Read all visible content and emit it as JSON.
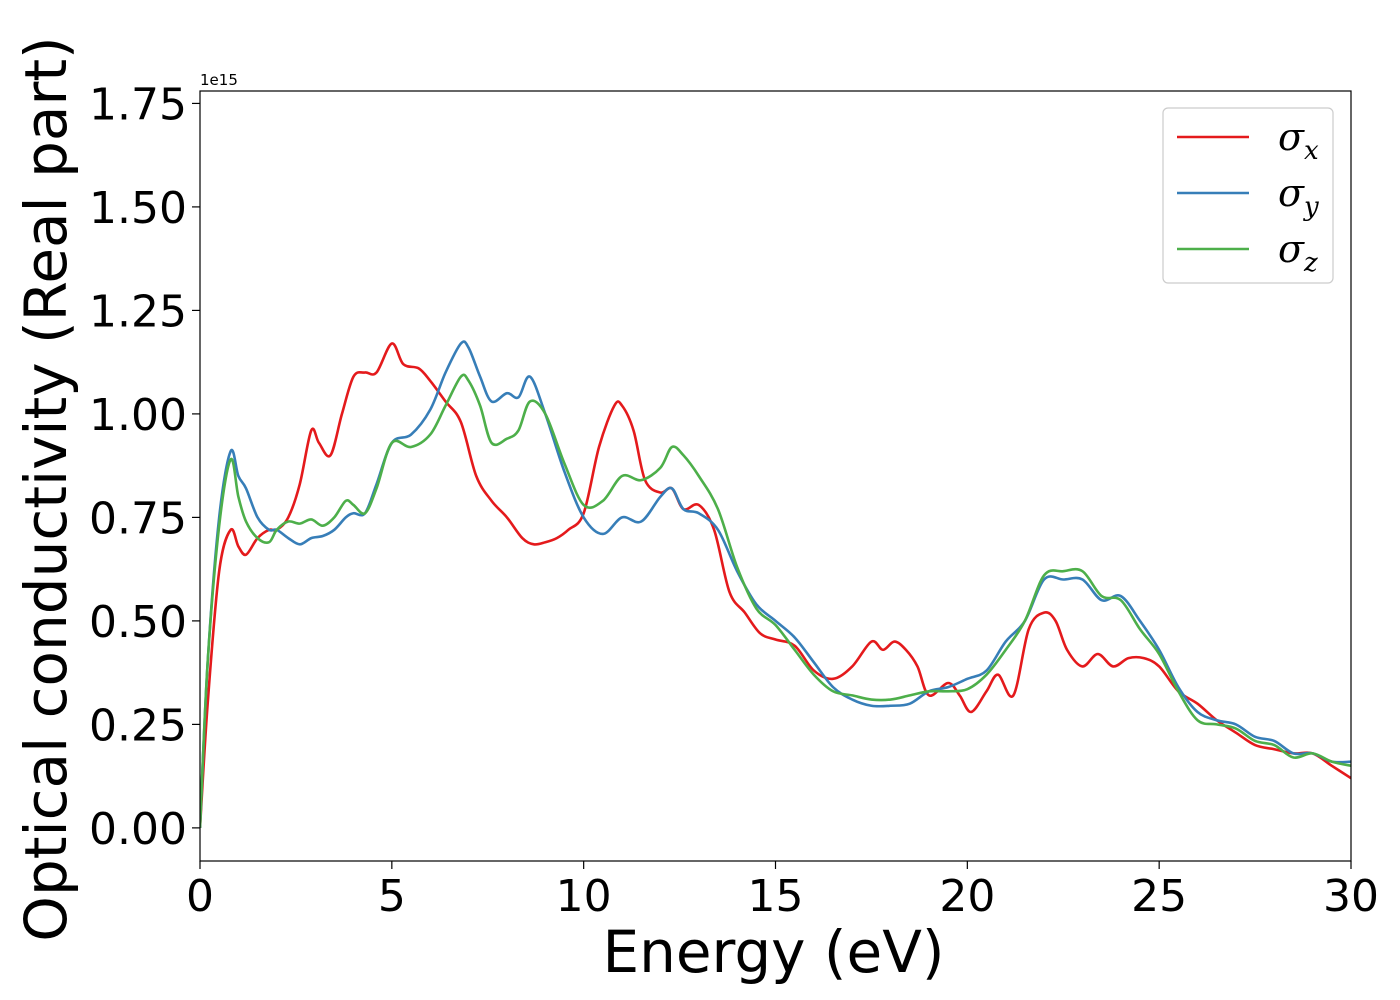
{
  "chart_data": {
    "type": "line",
    "title": "",
    "xlabel": "Energy (eV)",
    "ylabel": "Optical conductivity (Real part)",
    "y_offset_text": "1e15",
    "xlim": [
      0,
      30
    ],
    "ylim": [
      -0.08,
      1.78
    ],
    "xticks": [
      0,
      5,
      10,
      15,
      20,
      25,
      30
    ],
    "xtick_labels": [
      "0",
      "5",
      "10",
      "15",
      "20",
      "25",
      "30"
    ],
    "yticks": [
      0.0,
      0.25,
      0.5,
      0.75,
      1.0,
      1.25,
      1.5,
      1.75
    ],
    "ytick_labels": [
      "0.00",
      "0.25",
      "0.50",
      "0.75",
      "1.00",
      "1.25",
      "1.50",
      "1.75"
    ],
    "grid": false,
    "legend_position": "top-right",
    "series": [
      {
        "name": "σx",
        "base": "σ",
        "sub": "x",
        "color": "#e41a1c",
        "x": [
          0,
          0.2,
          0.5,
          0.8,
          1.0,
          1.2,
          1.5,
          1.8,
          2.0,
          2.3,
          2.6,
          2.9,
          3.1,
          3.4,
          3.7,
          4.0,
          4.3,
          4.6,
          5.0,
          5.3,
          5.7,
          6.0,
          6.4,
          6.8,
          7.2,
          7.6,
          8.0,
          8.4,
          8.7,
          9.0,
          9.3,
          9.6,
          10.0,
          10.4,
          10.8,
          11.0,
          11.3,
          11.6,
          12.0,
          12.3,
          12.6,
          13.0,
          13.4,
          13.8,
          14.2,
          14.6,
          15.0,
          15.5,
          16.0,
          16.5,
          17.0,
          17.5,
          17.8,
          18.1,
          18.4,
          18.7,
          19.0,
          19.5,
          19.8,
          20.1,
          20.5,
          20.8,
          21.2,
          21.6,
          22.0,
          22.3,
          22.6,
          23.0,
          23.4,
          23.8,
          24.2,
          24.6,
          25.0,
          25.5,
          26.0,
          26.5,
          27.0,
          27.5,
          28.0,
          28.5,
          29.0,
          29.5,
          30.0
        ],
        "y": [
          0.0,
          0.3,
          0.62,
          0.72,
          0.68,
          0.66,
          0.7,
          0.72,
          0.72,
          0.75,
          0.83,
          0.96,
          0.93,
          0.9,
          1.0,
          1.09,
          1.1,
          1.1,
          1.17,
          1.12,
          1.11,
          1.08,
          1.03,
          0.98,
          0.85,
          0.79,
          0.75,
          0.7,
          0.685,
          0.69,
          0.7,
          0.72,
          0.76,
          0.92,
          1.02,
          1.02,
          0.96,
          0.84,
          0.81,
          0.82,
          0.77,
          0.78,
          0.72,
          0.57,
          0.52,
          0.47,
          0.455,
          0.44,
          0.38,
          0.36,
          0.39,
          0.45,
          0.43,
          0.45,
          0.43,
          0.39,
          0.32,
          0.35,
          0.32,
          0.28,
          0.33,
          0.37,
          0.32,
          0.48,
          0.52,
          0.5,
          0.43,
          0.39,
          0.42,
          0.39,
          0.41,
          0.41,
          0.39,
          0.33,
          0.3,
          0.26,
          0.23,
          0.2,
          0.19,
          0.18,
          0.18,
          0.15,
          0.12
        ]
      },
      {
        "name": "σy",
        "base": "σ",
        "sub": "y",
        "color": "#377eb8",
        "x": [
          0,
          0.2,
          0.5,
          0.8,
          1.0,
          1.2,
          1.5,
          1.8,
          2.0,
          2.3,
          2.6,
          2.9,
          3.2,
          3.5,
          3.8,
          4.0,
          4.3,
          4.6,
          5.0,
          5.5,
          6.0,
          6.4,
          6.8,
          7.0,
          7.3,
          7.6,
          8.0,
          8.3,
          8.6,
          9.0,
          9.5,
          10.0,
          10.5,
          11.0,
          11.5,
          12.0,
          12.3,
          12.6,
          13.0,
          13.5,
          14.0,
          14.5,
          15.0,
          15.5,
          16.0,
          16.5,
          17.0,
          17.5,
          18.0,
          18.5,
          19.0,
          19.5,
          20.0,
          20.5,
          21.0,
          21.5,
          22.0,
          22.5,
          23.0,
          23.5,
          24.0,
          24.5,
          25.0,
          25.5,
          26.0,
          26.5,
          27.0,
          27.5,
          28.0,
          28.5,
          29.0,
          29.5,
          30.0
        ],
        "y": [
          0.0,
          0.4,
          0.75,
          0.91,
          0.85,
          0.82,
          0.75,
          0.72,
          0.72,
          0.7,
          0.685,
          0.7,
          0.705,
          0.72,
          0.75,
          0.76,
          0.76,
          0.83,
          0.93,
          0.95,
          1.01,
          1.1,
          1.17,
          1.16,
          1.09,
          1.03,
          1.05,
          1.04,
          1.09,
          1.0,
          0.86,
          0.75,
          0.71,
          0.75,
          0.74,
          0.8,
          0.82,
          0.77,
          0.76,
          0.72,
          0.62,
          0.54,
          0.5,
          0.46,
          0.4,
          0.34,
          0.31,
          0.295,
          0.295,
          0.3,
          0.33,
          0.34,
          0.36,
          0.38,
          0.45,
          0.5,
          0.6,
          0.6,
          0.6,
          0.55,
          0.56,
          0.5,
          0.43,
          0.34,
          0.28,
          0.26,
          0.25,
          0.22,
          0.21,
          0.18,
          0.18,
          0.16,
          0.16
        ]
      },
      {
        "name": "σz",
        "base": "σ",
        "sub": "z",
        "color": "#4daf4a",
        "x": [
          0,
          0.2,
          0.5,
          0.8,
          1.0,
          1.2,
          1.5,
          1.8,
          2.0,
          2.3,
          2.6,
          2.9,
          3.2,
          3.5,
          3.8,
          4.0,
          4.3,
          4.6,
          5.0,
          5.5,
          6.0,
          6.4,
          6.8,
          7.0,
          7.3,
          7.6,
          8.0,
          8.3,
          8.6,
          9.0,
          9.5,
          10.0,
          10.5,
          11.0,
          11.5,
          12.0,
          12.3,
          12.6,
          13.0,
          13.5,
          14.0,
          14.5,
          15.0,
          15.5,
          16.0,
          16.5,
          17.0,
          17.5,
          18.0,
          18.5,
          19.0,
          19.5,
          20.0,
          20.5,
          21.0,
          21.5,
          22.0,
          22.5,
          23.0,
          23.5,
          24.0,
          24.5,
          25.0,
          25.5,
          26.0,
          26.5,
          27.0,
          27.5,
          28.0,
          28.5,
          29.0,
          29.5,
          30.0
        ],
        "y": [
          0.0,
          0.4,
          0.73,
          0.89,
          0.8,
          0.74,
          0.7,
          0.69,
          0.72,
          0.74,
          0.735,
          0.745,
          0.73,
          0.75,
          0.79,
          0.78,
          0.76,
          0.82,
          0.93,
          0.92,
          0.95,
          1.02,
          1.09,
          1.08,
          1.02,
          0.93,
          0.94,
          0.96,
          1.03,
          1.0,
          0.88,
          0.78,
          0.79,
          0.85,
          0.84,
          0.87,
          0.92,
          0.9,
          0.85,
          0.77,
          0.63,
          0.53,
          0.49,
          0.43,
          0.37,
          0.33,
          0.32,
          0.31,
          0.31,
          0.32,
          0.33,
          0.33,
          0.335,
          0.37,
          0.43,
          0.5,
          0.61,
          0.62,
          0.62,
          0.56,
          0.55,
          0.48,
          0.42,
          0.33,
          0.26,
          0.25,
          0.24,
          0.21,
          0.2,
          0.17,
          0.18,
          0.16,
          0.15
        ]
      }
    ]
  }
}
